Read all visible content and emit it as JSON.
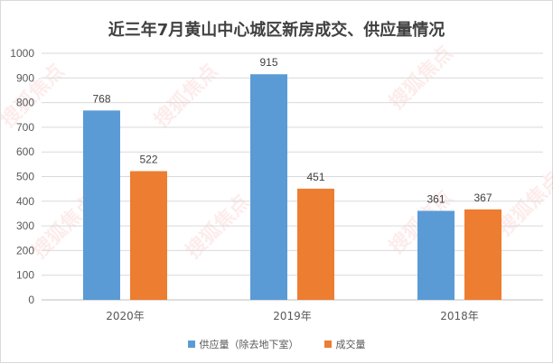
{
  "chart_data": {
    "type": "bar",
    "title": "近三年7月黄山中心城区新房成交、供应量情况",
    "categories": [
      "2020年",
      "2019年",
      "2018年"
    ],
    "series": [
      {
        "name": "供应量（除去地下室）",
        "values": [
          768,
          915,
          361
        ],
        "color": "#5b9bd5"
      },
      {
        "name": "成交量",
        "values": [
          522,
          451,
          367
        ],
        "color": "#ed7d31"
      }
    ],
    "ylim": [
      0,
      1000
    ],
    "yticks": [
      0,
      100,
      200,
      300,
      400,
      500,
      600,
      700,
      800,
      900,
      1000
    ],
    "grid": true,
    "legend_position": "bottom"
  },
  "watermark": "搜狐焦点"
}
